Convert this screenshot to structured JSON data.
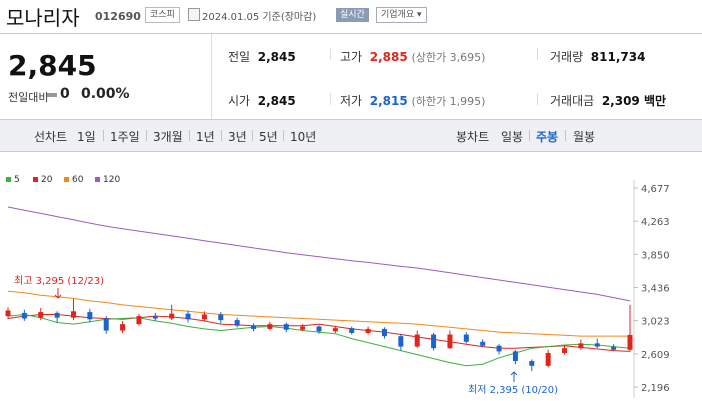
{
  "header": {
    "name": "모나리자",
    "code": "012690",
    "market": "코스피",
    "date": "2024.01.05  기준(장마감)",
    "realtime": "실시간",
    "corp_info": "기업개요 ▾"
  },
  "summary": {
    "price": "2,845",
    "change_label": "전일대비",
    "change_value": "0",
    "change_pct": "0.00%",
    "prev_label": "전일",
    "prev_value": "2,845",
    "open_label": "시가",
    "open_value": "2,845",
    "high_label": "고가",
    "high_value": "2,885",
    "upper_limit": "(상한가 3,695)",
    "low_label": "저가",
    "low_value": "2,815",
    "lower_limit": "(하한가 1,995)",
    "volume_label": "거래량",
    "volume_value": "811,734",
    "amount_label": "거래대금",
    "amount_value": "2,309 백만"
  },
  "toolbar": {
    "line_chart": "선차트",
    "periods": [
      "1일",
      "1주일",
      "3개월",
      "1년",
      "3년",
      "5년",
      "10년"
    ],
    "candle_chart": "봉차트",
    "candles": [
      "일봉",
      "주봉",
      "월봉"
    ],
    "active_candle": "주봉"
  },
  "colors": {
    "up": "#e0251c",
    "down": "#1a64d2",
    "ma5": "#3cb13c",
    "ma20": "#e0251c",
    "ma60": "#f08a1c",
    "ma120": "#9b5bc4"
  },
  "chart_data": {
    "type": "candlestick",
    "legend": [
      "5",
      "20",
      "60",
      "120"
    ],
    "y_ticks": [
      4677,
      4263,
      3850,
      3436,
      3023,
      2609,
      2196
    ],
    "ylim": [
      2196,
      4677
    ],
    "high_annotation": "최고 3,295 (12/23)",
    "low_annotation": "최저 2,395 (10/20)",
    "ma120": [
      4440,
      4400,
      4360,
      4320,
      4280,
      4240,
      4200,
      4170,
      4140,
      4110,
      4080,
      4050,
      4020,
      3990,
      3960,
      3930,
      3900,
      3870,
      3845,
      3820,
      3795,
      3770,
      3750,
      3725,
      3700,
      3680,
      3650,
      3620,
      3590,
      3560,
      3530,
      3500,
      3470,
      3440,
      3410,
      3380,
      3350,
      3310,
      3270
    ],
    "ma60": [
      3390,
      3370,
      3340,
      3320,
      3300,
      3270,
      3250,
      3220,
      3200,
      3180,
      3160,
      3140,
      3120,
      3100,
      3090,
      3080,
      3070,
      3060,
      3050,
      3040,
      3030,
      3020,
      3010,
      3000,
      2990,
      2980,
      2960,
      2940,
      2920,
      2900,
      2880,
      2870,
      2860,
      2850,
      2840,
      2830,
      2830,
      2830,
      2830
    ],
    "ma20": [
      3050,
      3080,
      3100,
      3100,
      3080,
      3060,
      3050,
      3040,
      3060,
      3080,
      3070,
      3050,
      3020,
      2980,
      2970,
      2960,
      2960,
      2960,
      2960,
      2980,
      2950,
      2920,
      2900,
      2880,
      2850,
      2820,
      2790,
      2760,
      2730,
      2700,
      2680,
      2680,
      2690,
      2700,
      2710,
      2690,
      2670,
      2650,
      2640
    ],
    "ma5": [
      3080,
      3100,
      3060,
      3000,
      2980,
      3010,
      3040,
      3050,
      3060,
      3020,
      2990,
      2950,
      2920,
      2900,
      2920,
      2940,
      2950,
      2930,
      2900,
      2880,
      2860,
      2800,
      2750,
      2700,
      2650,
      2600,
      2550,
      2500,
      2460,
      2480,
      2560,
      2620,
      2680,
      2700,
      2720,
      2730,
      2720,
      2700,
      2680
    ],
    "candles": [
      {
        "o": 3080,
        "c": 3150,
        "h": 3190,
        "l": 3040
      },
      {
        "o": 3120,
        "c": 3050,
        "h": 3160,
        "l": 3020
      },
      {
        "o": 3060,
        "c": 3130,
        "h": 3180,
        "l": 3030
      },
      {
        "o": 3120,
        "c": 3060,
        "h": 3140,
        "l": 3000
      },
      {
        "o": 3060,
        "c": 3140,
        "h": 3295,
        "l": 3030
      },
      {
        "o": 3130,
        "c": 3040,
        "h": 3170,
        "l": 3000
      },
      {
        "o": 3050,
        "c": 2900,
        "h": 3080,
        "l": 2860
      },
      {
        "o": 2900,
        "c": 2980,
        "h": 3020,
        "l": 2870
      },
      {
        "o": 2980,
        "c": 3080,
        "h": 3110,
        "l": 2960
      },
      {
        "o": 3080,
        "c": 3050,
        "h": 3120,
        "l": 3020
      },
      {
        "o": 3050,
        "c": 3110,
        "h": 3220,
        "l": 3030
      },
      {
        "o": 3110,
        "c": 3040,
        "h": 3150,
        "l": 3000
      },
      {
        "o": 3040,
        "c": 3100,
        "h": 3140,
        "l": 3010
      },
      {
        "o": 3100,
        "c": 3030,
        "h": 3130,
        "l": 2990
      },
      {
        "o": 3030,
        "c": 2960,
        "h": 3060,
        "l": 2940
      },
      {
        "o": 2960,
        "c": 2920,
        "h": 2990,
        "l": 2890
      },
      {
        "o": 2920,
        "c": 2980,
        "h": 3010,
        "l": 2900
      },
      {
        "o": 2980,
        "c": 2910,
        "h": 3000,
        "l": 2880
      },
      {
        "o": 2910,
        "c": 2950,
        "h": 2980,
        "l": 2890
      },
      {
        "o": 2950,
        "c": 2890,
        "h": 2970,
        "l": 2860
      },
      {
        "o": 2890,
        "c": 2930,
        "h": 2960,
        "l": 2870
      },
      {
        "o": 2930,
        "c": 2870,
        "h": 2950,
        "l": 2850
      },
      {
        "o": 2870,
        "c": 2920,
        "h": 2950,
        "l": 2850
      },
      {
        "o": 2920,
        "c": 2830,
        "h": 2940,
        "l": 2800
      },
      {
        "o": 2830,
        "c": 2700,
        "h": 2860,
        "l": 2650
      },
      {
        "o": 2700,
        "c": 2850,
        "h": 2900,
        "l": 2680
      },
      {
        "o": 2850,
        "c": 2680,
        "h": 2870,
        "l": 2650
      },
      {
        "o": 2680,
        "c": 2850,
        "h": 2900,
        "l": 2670
      },
      {
        "o": 2850,
        "c": 2760,
        "h": 2880,
        "l": 2740
      },
      {
        "o": 2760,
        "c": 2710,
        "h": 2790,
        "l": 2690
      },
      {
        "o": 2710,
        "c": 2640,
        "h": 2730,
        "l": 2600
      },
      {
        "o": 2640,
        "c": 2520,
        "h": 2660,
        "l": 2480
      },
      {
        "o": 2520,
        "c": 2460,
        "h": 2540,
        "l": 2395
      },
      {
        "o": 2460,
        "c": 2620,
        "h": 2660,
        "l": 2440
      },
      {
        "o": 2620,
        "c": 2680,
        "h": 2720,
        "l": 2600
      },
      {
        "o": 2680,
        "c": 2740,
        "h": 2790,
        "l": 2660
      },
      {
        "o": 2740,
        "c": 2700,
        "h": 2800,
        "l": 2680
      },
      {
        "o": 2700,
        "c": 2660,
        "h": 2730,
        "l": 2640
      },
      {
        "o": 2660,
        "c": 2845,
        "h": 3220,
        "l": 2640
      }
    ]
  }
}
